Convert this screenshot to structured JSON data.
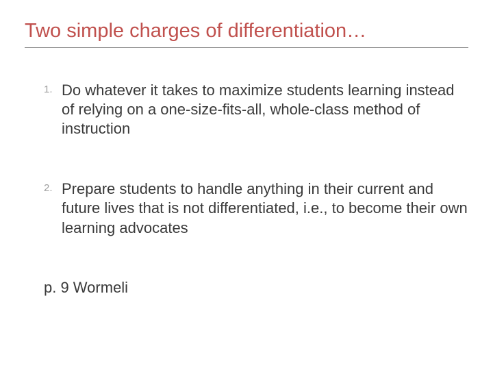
{
  "title": "Two simple charges of differentiation…",
  "items": [
    {
      "number": "1.",
      "text": "Do whatever it takes to maximize students learning instead of relying on a one-size-fits-all, whole-class method of instruction"
    },
    {
      "number": "2.",
      "text": "Prepare students to handle anything in their current and future lives that is not differentiated, i.e., to become their own learning advocates"
    }
  ],
  "citation": "p. 9 Wormeli",
  "colors": {
    "title_color": "#c0504d",
    "text_color": "#3a3a3a",
    "number_color": "#9e9e9e",
    "rule_color": "#888888",
    "background": "#ffffff"
  },
  "typography": {
    "title_fontsize": 29,
    "body_fontsize": 22,
    "number_fontsize": 15,
    "font_family": "Arial"
  }
}
